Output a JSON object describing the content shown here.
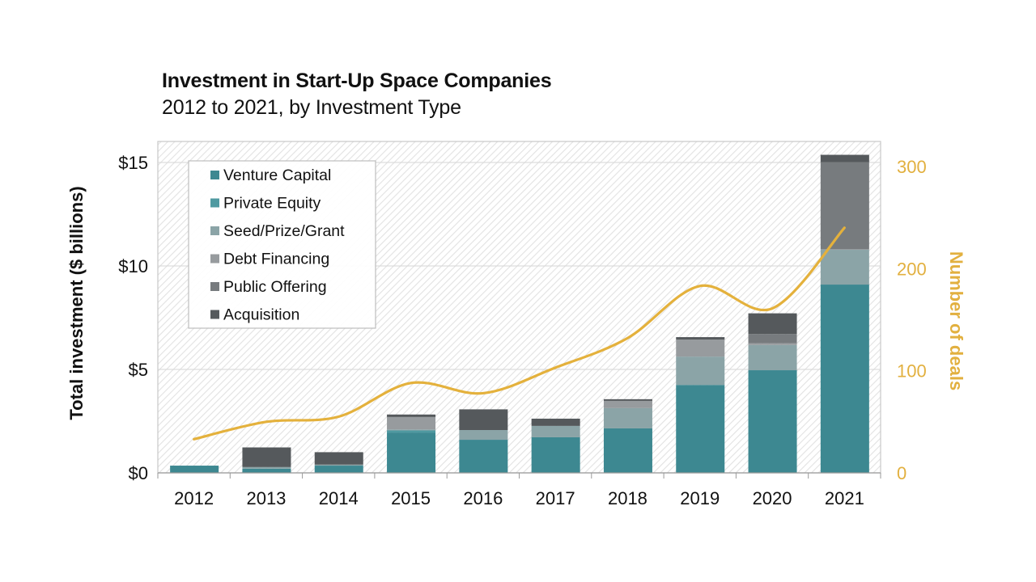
{
  "chart_data": {
    "type": "bar",
    "stacked": true,
    "title": "Investment in Start-Up Space Companies",
    "subtitle": "2012 to 2021, by Investment Type",
    "xlabel": "",
    "ylabel": "Total investment ($ billions)",
    "y2label": "Number of deals",
    "categories": [
      "2012",
      "2013",
      "2014",
      "2015",
      "2016",
      "2017",
      "2018",
      "2019",
      "2020",
      "2021"
    ],
    "ylim": [
      0,
      16
    ],
    "yticks": [
      0,
      5,
      10,
      15
    ],
    "ytick_labels": [
      "$0",
      "$5",
      "$10",
      "$15"
    ],
    "y2lim": [
      0,
      320
    ],
    "y2ticks": [
      0,
      100,
      200,
      300
    ],
    "y2tick_labels": [
      "0",
      "100",
      "200",
      "300"
    ],
    "grid": true,
    "legend_position": "top-left",
    "series": [
      {
        "name": "Venture Capital",
        "color": "#3d8891",
        "values": [
          0.35,
          0.2,
          0.35,
          1.95,
          1.6,
          1.72,
          2.15,
          4.25,
          4.96,
          9.1
        ]
      },
      {
        "name": "Private Equity",
        "color": "#4f9aa1",
        "values": [
          0.0,
          0.0,
          0.0,
          0.1,
          0.0,
          0.0,
          0.0,
          0.0,
          0.0,
          0.0
        ]
      },
      {
        "name": "Seed/Prize/Grant",
        "color": "#8ba4a7",
        "values": [
          0.0,
          0.08,
          0.05,
          0.05,
          0.47,
          0.55,
          0.98,
          1.37,
          1.22,
          1.68
        ]
      },
      {
        "name": "Debt Financing",
        "color": "#979b9e",
        "values": [
          0.0,
          0.0,
          0.0,
          0.6,
          0.0,
          0.0,
          0.35,
          0.82,
          0.08,
          0.04
        ]
      },
      {
        "name": "Public Offering",
        "color": "#777b7e",
        "values": [
          0.0,
          0.0,
          0.0,
          0.0,
          0.0,
          0.0,
          0.0,
          0.0,
          0.45,
          4.2
        ]
      },
      {
        "name": "Acquisition",
        "color": "#55595c",
        "values": [
          0.0,
          0.95,
          0.6,
          0.12,
          1.0,
          0.35,
          0.08,
          0.12,
          1.0,
          0.35
        ]
      }
    ],
    "line_series": {
      "name": "Number of deals",
      "axis": "right",
      "color": "#e4b13c",
      "values": [
        33,
        50,
        55,
        88,
        78,
        103,
        132,
        183,
        161,
        240
      ]
    }
  }
}
